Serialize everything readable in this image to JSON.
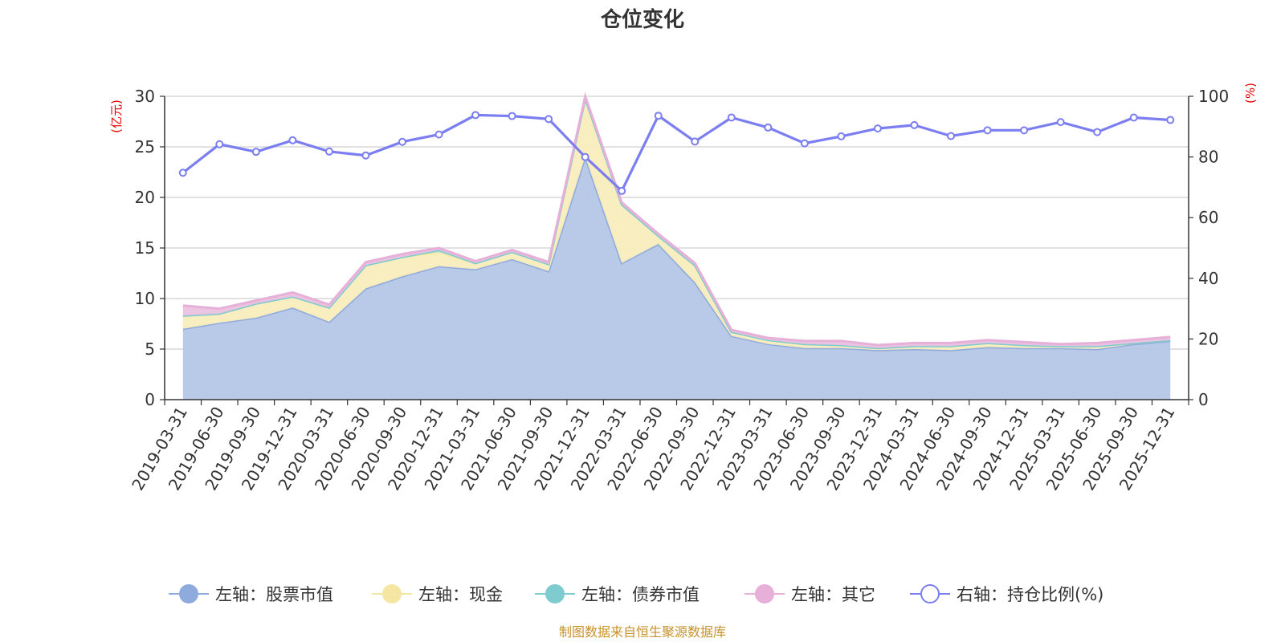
{
  "chart_data": {
    "type": "area",
    "title": "仓位变化",
    "left_axis_unit": "(亿元)",
    "right_axis_unit": "(%)",
    "ylim_left": [
      0,
      30
    ],
    "ylim_right": [
      0,
      100
    ],
    "left_ticks": [
      "0",
      "5",
      "10",
      "15",
      "20",
      "25",
      "30"
    ],
    "right_ticks": [
      "0",
      "20",
      "40",
      "60",
      "80",
      "100"
    ],
    "categories": [
      "2019-03-31",
      "2019-06-30",
      "2019-09-30",
      "2019-12-31",
      "2020-03-31",
      "2020-06-30",
      "2020-09-30",
      "2020-12-31",
      "2021-03-31",
      "2021-06-30",
      "2021-09-30",
      "2021-12-31",
      "2022-03-31",
      "2022-06-30",
      "2022-09-30",
      "2022-12-31",
      "2023-03-31",
      "2023-06-30",
      "2023-09-30",
      "2023-12-31",
      "2024-03-31",
      "2024-06-30",
      "2024-09-30",
      "2024-12-31",
      "2025-03-31",
      "2025-06-30",
      "2025-09-30",
      "2025-12-31"
    ],
    "series": [
      {
        "name": "左轴：股票市值",
        "type": "area",
        "axis": "left",
        "color": "#8faadc",
        "fill": "#b4c7e7",
        "values": [
          7.0,
          7.6,
          8.1,
          9.1,
          7.7,
          11.0,
          12.2,
          13.2,
          12.9,
          13.9,
          12.7,
          24.0,
          13.5,
          15.4,
          11.6,
          6.3,
          5.5,
          5.1,
          5.1,
          4.9,
          5.0,
          4.9,
          5.2,
          5.1,
          5.1,
          5.0,
          5.5,
          5.8
        ]
      },
      {
        "name": "左轴：现金",
        "type": "area",
        "axis": "left",
        "color": "#f5e6a3",
        "fill": "#f9edbd",
        "values": [
          1.3,
          0.9,
          1.4,
          1.1,
          1.4,
          2.3,
          1.9,
          1.4,
          0.6,
          0.7,
          0.7,
          5.8,
          5.8,
          0.8,
          1.7,
          0.4,
          0.4,
          0.4,
          0.3,
          0.2,
          0.3,
          0.4,
          0.4,
          0.3,
          0.2,
          0.3,
          0.1,
          0.1
        ]
      },
      {
        "name": "左轴：债券市值",
        "type": "area",
        "axis": "left",
        "color": "#7ecbd0",
        "fill": "#a9dde0",
        "values": [
          0,
          0,
          0,
          0,
          0,
          0,
          0,
          0.2,
          0,
          0,
          0,
          0,
          0,
          0,
          0,
          0,
          0,
          0,
          0,
          0,
          0,
          0,
          0,
          0,
          0,
          0,
          0,
          0
        ]
      },
      {
        "name": "左轴：其它",
        "type": "area",
        "axis": "left",
        "color": "#e6b0d8",
        "fill": "#ebc2e0",
        "values": [
          1.0,
          0.5,
          0.3,
          0.4,
          0.3,
          0.3,
          0.3,
          0.2,
          0.2,
          0.2,
          0.2,
          0.2,
          0.2,
          0.2,
          0.2,
          0.2,
          0.2,
          0.3,
          0.4,
          0.3,
          0.3,
          0.3,
          0.3,
          0.3,
          0.2,
          0.3,
          0.3,
          0.3
        ]
      },
      {
        "name": "右轴：持仓比例(%)",
        "type": "line",
        "axis": "right",
        "color": "#7b7ef0",
        "values": [
          74.8,
          84.2,
          81.7,
          85.5,
          81.8,
          80.5,
          85.0,
          87.4,
          93.8,
          93.5,
          92.5,
          80.0,
          68.8,
          93.6,
          85.1,
          93.0,
          89.7,
          84.5,
          86.8,
          89.4,
          90.5,
          86.9,
          88.8,
          88.8,
          91.5,
          88.2,
          93.0,
          92.2
        ]
      }
    ]
  },
  "footer": "制图数据来自恒生聚源数据库"
}
